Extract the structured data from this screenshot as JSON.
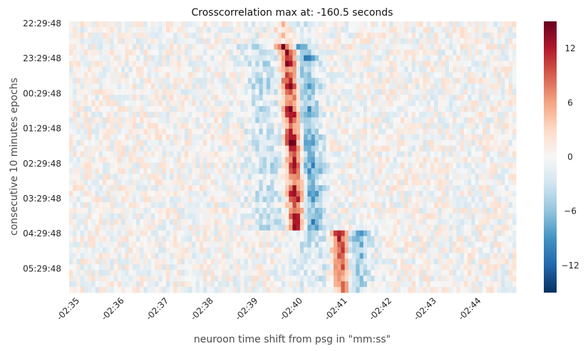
{
  "chart_data": {
    "type": "heatmap",
    "title": "Crosscorrelation max at: -160.5 seconds",
    "xlabel": "neuroon time shift from psg in \"mm:ss\"",
    "ylabel": "consecutive 10 minutes epochs",
    "x_tick_labels": [
      "-02:35",
      "-02:36",
      "-02:37",
      "-02:38",
      "-02:39",
      "-02:40",
      "-02:41",
      "-02:42",
      "-02:43",
      "-02:44"
    ],
    "y_tick_labels": [
      "22:29:48",
      "23:29:48",
      "00:29:48",
      "01:29:48",
      "02:29:48",
      "03:29:48",
      "04:29:48",
      "05:29:48"
    ],
    "x_range_seconds": [
      -155,
      -165
    ],
    "colorbar": {
      "ticks": [
        12,
        6,
        0,
        -6,
        -12
      ],
      "range": [
        -15,
        15
      ],
      "colormap": "RdBu_r"
    },
    "grid": false
  }
}
